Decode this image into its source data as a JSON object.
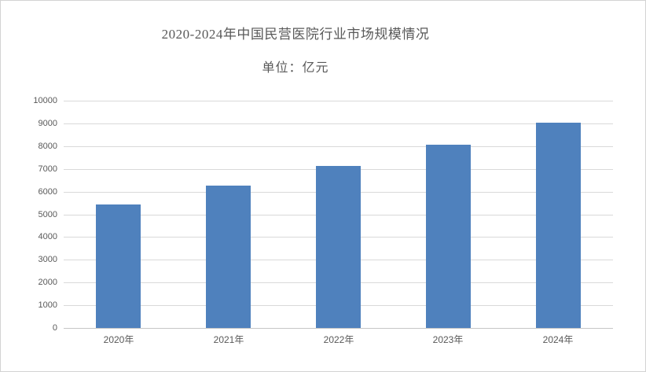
{
  "page": {
    "background_color": "#ffffff",
    "border_color": "#d3d3d3"
  },
  "chart_data": {
    "type": "bar",
    "title": "2020-2024年中国民营医院行业市场规模情况",
    "unit_label": "单位：亿元",
    "categories": [
      "2020年",
      "2021年",
      "2022年",
      "2023年",
      "2024年"
    ],
    "values": [
      5440,
      6260,
      7140,
      8070,
      9040
    ],
    "xlabel": "",
    "ylabel": "",
    "ylim": [
      0,
      10000
    ],
    "y_tick_step": 1000,
    "y_ticks": [
      0,
      1000,
      2000,
      3000,
      4000,
      5000,
      6000,
      7000,
      8000,
      9000,
      10000
    ],
    "grid": "horizontal",
    "legend": "none",
    "colors": {
      "bar": "#4f81bd",
      "gridline": "#d9d9d9",
      "axis_line": "#c6c6c6",
      "text": "#595959"
    }
  }
}
